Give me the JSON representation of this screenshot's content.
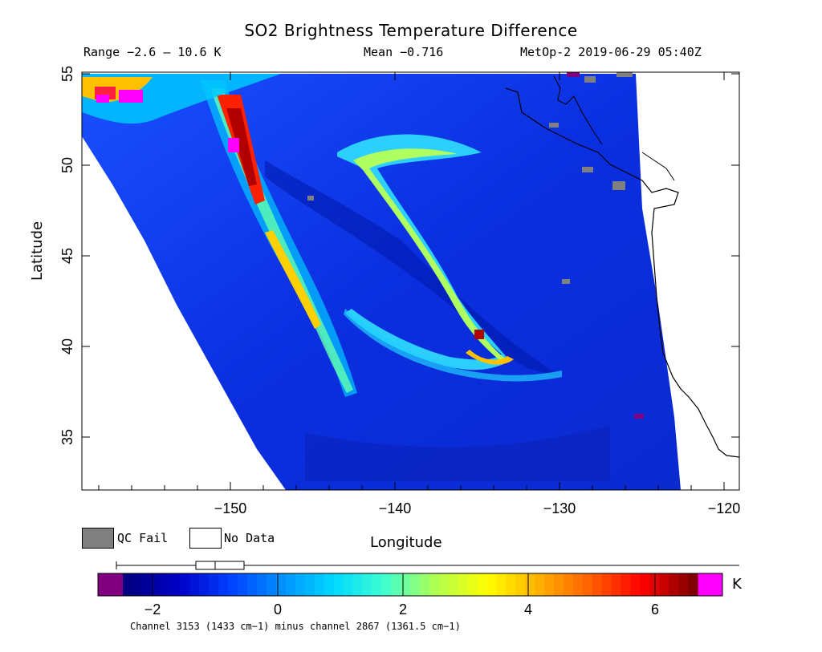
{
  "header": {
    "title": "SO2 Brightness Temperature Difference",
    "range_text": "Range −2.6 – 10.6 K",
    "mean_text": "Mean −0.716",
    "satellite_text": "MetOp-2 2019-06-29 05:40Z"
  },
  "axes": {
    "x_label": "Longitude",
    "y_label": "Latitude",
    "x_ticks": [
      "−150",
      "−140",
      "−130",
      "−120"
    ],
    "y_ticks": [
      "55",
      "50",
      "45",
      "40",
      "35"
    ]
  },
  "legend": {
    "qc_fail_label": "QC Fail",
    "no_data_label": "No Data",
    "qc_fail_color": "#808080",
    "no_data_color": "#ffffff"
  },
  "colorbar": {
    "ticks": [
      "−2",
      "0",
      "2",
      "4",
      "6"
    ],
    "unit": "K",
    "footnote": "Channel 3153 (1433 cm−1) minus channel 2867 (1361.5 cm−1)",
    "colors": [
      "#800080",
      "#000080",
      "#0000c8",
      "#0040ff",
      "#0090ff",
      "#00d8ff",
      "#40ffd0",
      "#b0ff50",
      "#ffff00",
      "#ffb000",
      "#ff6000",
      "#ff0000",
      "#800000",
      "#ff00ff"
    ]
  },
  "map_data": {
    "lon_range": [
      -160,
      -119
    ],
    "lat_range": [
      32,
      55
    ],
    "features": [
      "SO2 plume over Pacific",
      "satellite swath edge",
      "North America west coast"
    ]
  }
}
